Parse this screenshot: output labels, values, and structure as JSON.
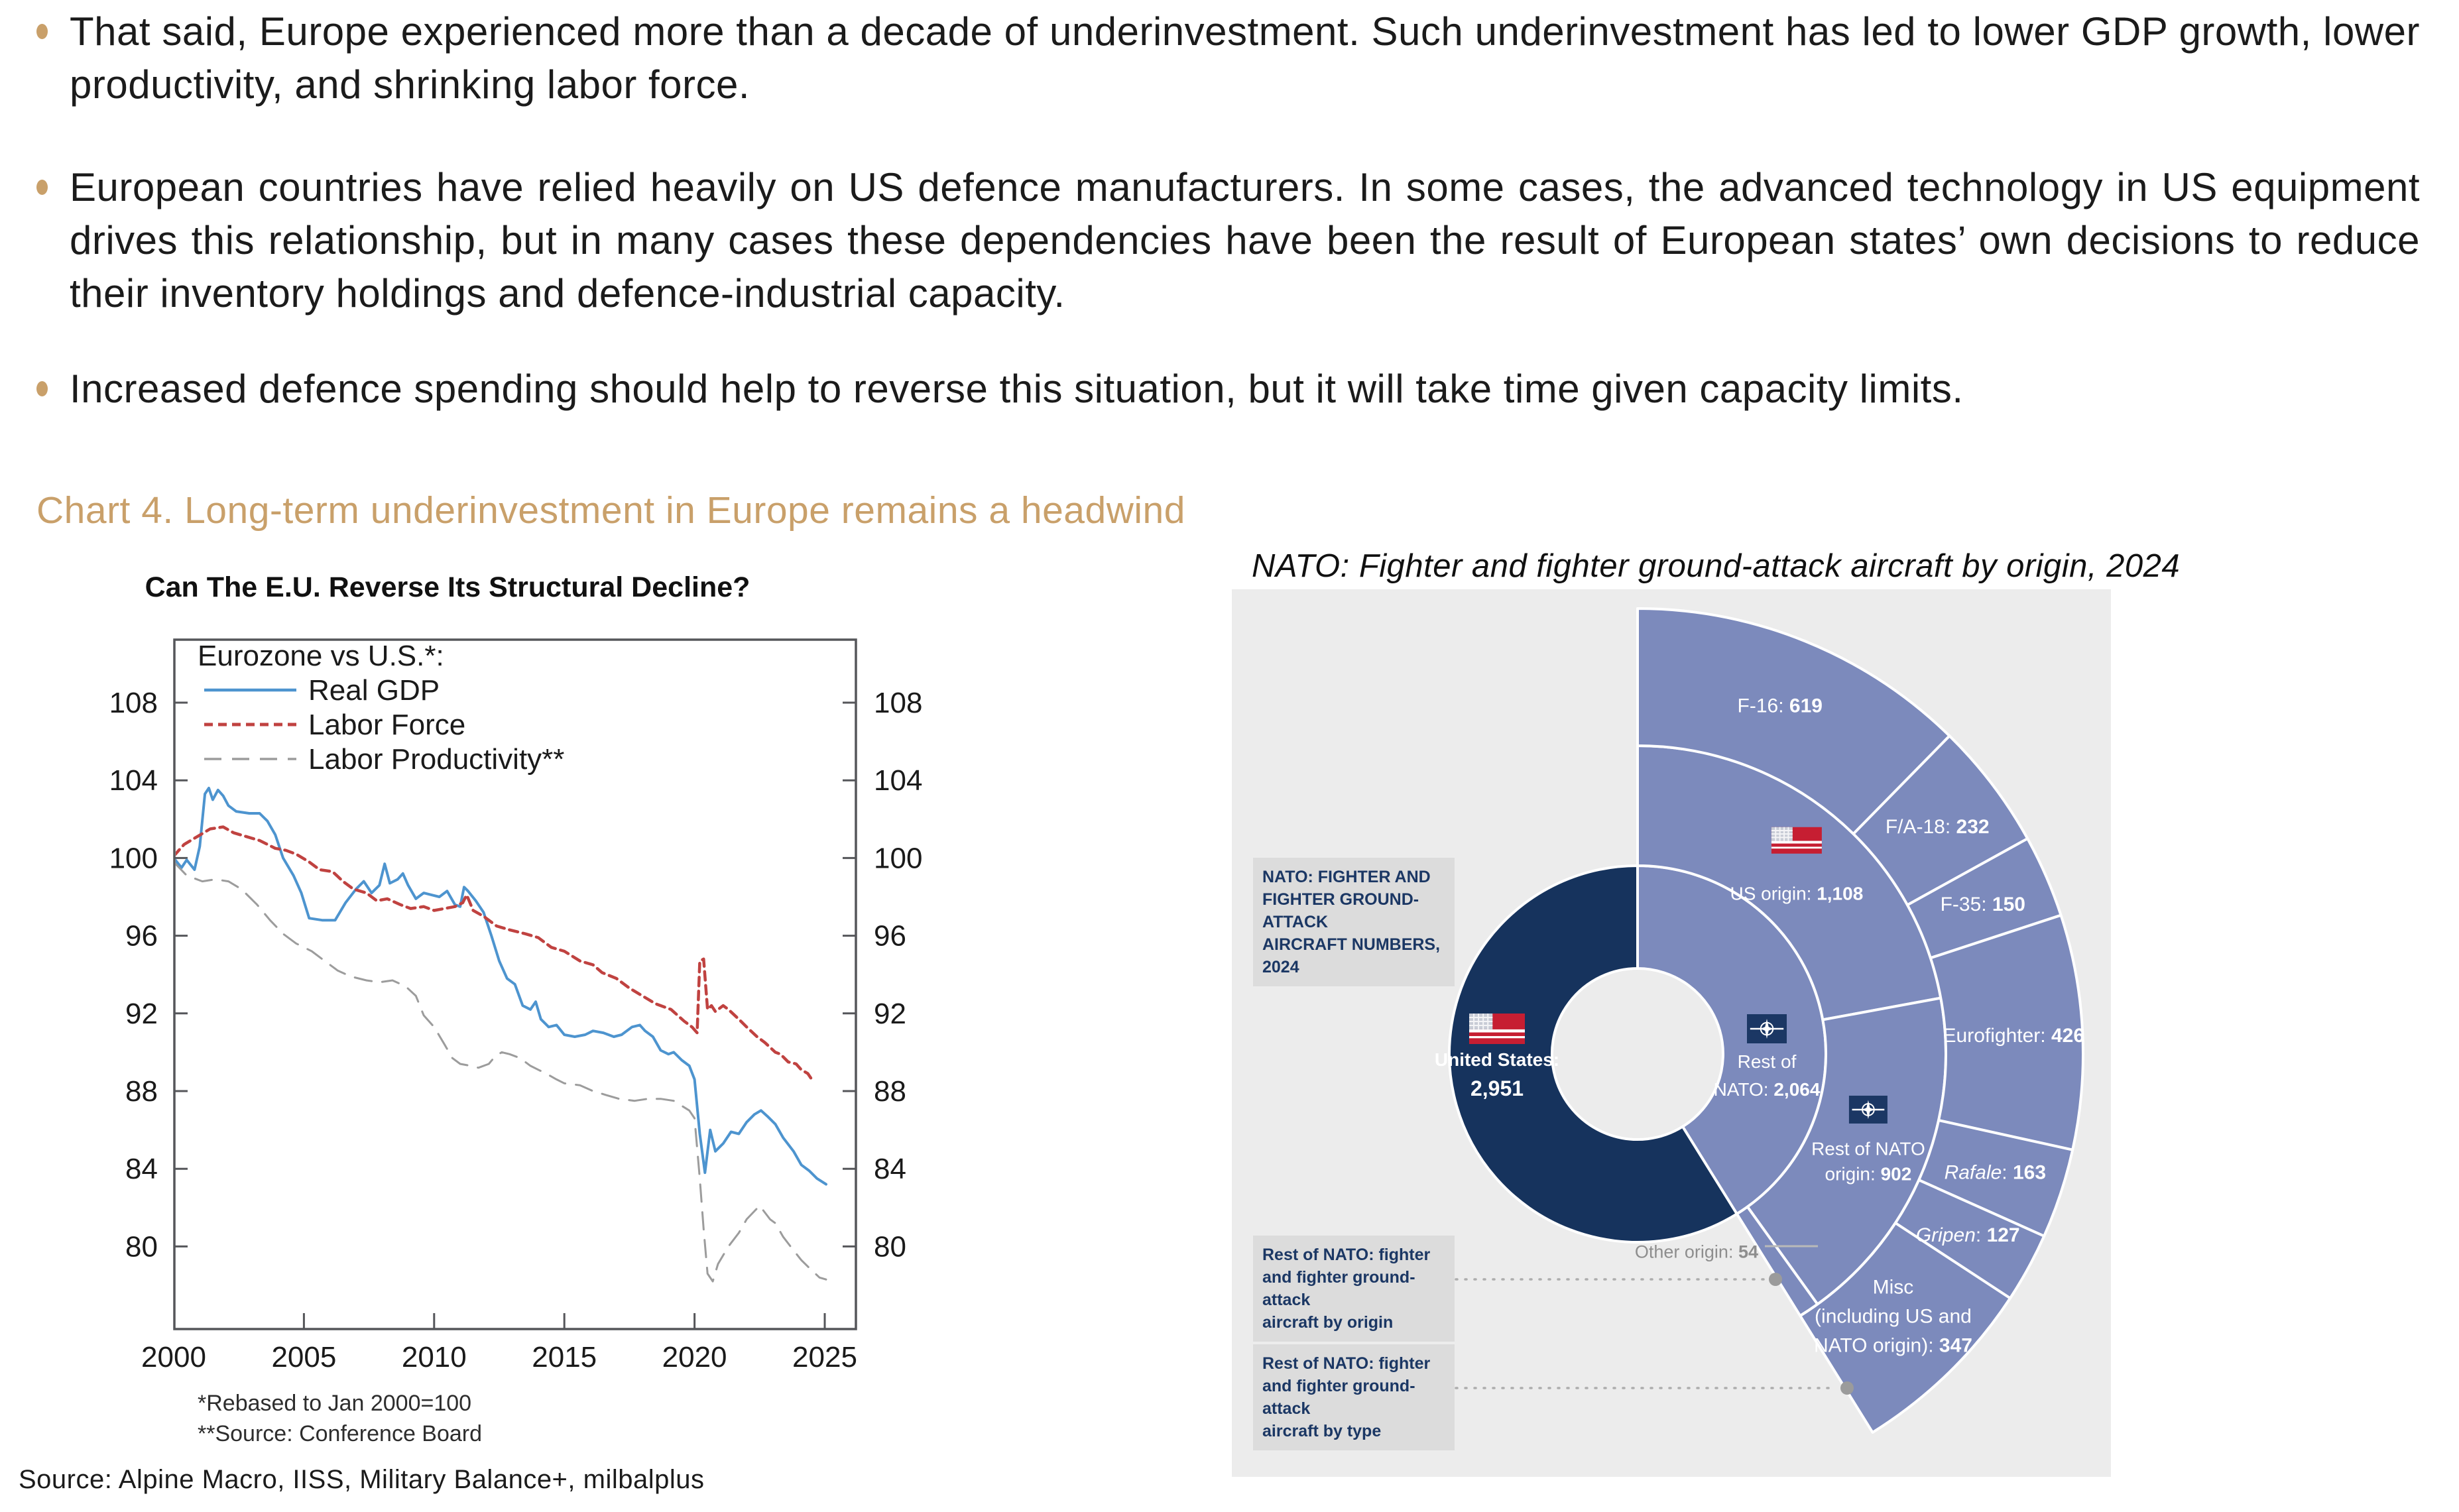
{
  "accent_color": "#C9A06A",
  "bullets": [
    {
      "text": "That said, Europe experienced more than a decade of underinvestment. Such underinvestment has led to lower GDP growth, lower productivity, and shrinking labor force."
    },
    {
      "text": "European countries have relied heavily on US defence manufacturers. In some cases, the advanced technology in US equipment drives this relationship, but in many cases these dependencies have been the result of European states’ own decisions to reduce their inventory holdings and defence-industrial capacity."
    },
    {
      "text": "Increased defence spending should help to reverse this situation, but it will take time given capacity limits."
    }
  ],
  "section_heading": "Chart 4. Long-term underinvestment in Europe remains a headwind",
  "source_note": "Source: Alpine Macro, IISS, Military Balance+, milbalplus",
  "chart_data": [
    {
      "type": "line",
      "title": "Can The E.U. Reverse Its Structural Decline?",
      "legend_title": "Eurozone vs U.S.*:",
      "x_ticks": [
        2000,
        2005,
        2010,
        2015,
        2020,
        2025
      ],
      "y_ticks": [
        108,
        104,
        100,
        96,
        92,
        88,
        84,
        80
      ],
      "xlim": [
        2000,
        2026.2
      ],
      "ylim": [
        75.7,
        111.3
      ],
      "grid": false,
      "legend_position": "top-left-inside",
      "footnotes": [
        "*Rebased to Jan 2000=100",
        "**Source: Conference Board"
      ],
      "series": [
        {
          "name": "Real GDP",
          "color": "#4D94CF",
          "dash": "solid",
          "points": [
            [
              2000.0,
              100.0
            ],
            [
              2000.3,
              99.5
            ],
            [
              2000.5,
              99.9
            ],
            [
              2000.8,
              99.4
            ],
            [
              2001.0,
              100.6
            ],
            [
              2001.2,
              103.3
            ],
            [
              2001.35,
              103.6
            ],
            [
              2001.5,
              103.0
            ],
            [
              2001.7,
              103.5
            ],
            [
              2001.9,
              103.2
            ],
            [
              2002.1,
              102.7
            ],
            [
              2002.4,
              102.4
            ],
            [
              2002.9,
              102.3
            ],
            [
              2003.3,
              102.3
            ],
            [
              2003.6,
              101.9
            ],
            [
              2003.9,
              101.2
            ],
            [
              2004.2,
              100.0
            ],
            [
              2004.6,
              99.1
            ],
            [
              2004.9,
              98.2
            ],
            [
              2005.2,
              96.9
            ],
            [
              2005.7,
              96.8
            ],
            [
              2006.2,
              96.8
            ],
            [
              2006.6,
              97.7
            ],
            [
              2007.0,
              98.4
            ],
            [
              2007.3,
              98.8
            ],
            [
              2007.6,
              98.2
            ],
            [
              2007.9,
              98.6
            ],
            [
              2008.1,
              99.7
            ],
            [
              2008.3,
              98.7
            ],
            [
              2008.6,
              98.9
            ],
            [
              2008.8,
              99.2
            ],
            [
              2009.0,
              98.6
            ],
            [
              2009.3,
              97.9
            ],
            [
              2009.6,
              98.2
            ],
            [
              2009.9,
              98.1
            ],
            [
              2010.2,
              98.0
            ],
            [
              2010.5,
              98.3
            ],
            [
              2010.8,
              97.6
            ],
            [
              2011.0,
              97.5
            ],
            [
              2011.15,
              98.5
            ],
            [
              2011.3,
              98.3
            ],
            [
              2011.6,
              97.8
            ],
            [
              2011.9,
              97.2
            ],
            [
              2012.2,
              96.0
            ],
            [
              2012.5,
              94.7
            ],
            [
              2012.8,
              93.8
            ],
            [
              2013.1,
              93.5
            ],
            [
              2013.4,
              92.4
            ],
            [
              2013.7,
              92.2
            ],
            [
              2013.9,
              92.6
            ],
            [
              2014.1,
              91.7
            ],
            [
              2014.4,
              91.3
            ],
            [
              2014.7,
              91.4
            ],
            [
              2015.0,
              90.9
            ],
            [
              2015.4,
              90.8
            ],
            [
              2015.8,
              90.9
            ],
            [
              2016.1,
              91.1
            ],
            [
              2016.5,
              91.0
            ],
            [
              2016.9,
              90.8
            ],
            [
              2017.2,
              90.9
            ],
            [
              2017.6,
              91.3
            ],
            [
              2017.9,
              91.4
            ],
            [
              2018.1,
              91.1
            ],
            [
              2018.4,
              90.8
            ],
            [
              2018.7,
              90.1
            ],
            [
              2019.0,
              89.9
            ],
            [
              2019.2,
              90.0
            ],
            [
              2019.5,
              89.6
            ],
            [
              2019.8,
              89.3
            ],
            [
              2020.0,
              88.6
            ],
            [
              2020.2,
              85.8
            ],
            [
              2020.4,
              83.8
            ],
            [
              2020.6,
              86.0
            ],
            [
              2020.8,
              84.9
            ],
            [
              2021.1,
              85.3
            ],
            [
              2021.4,
              85.9
            ],
            [
              2021.7,
              85.8
            ],
            [
              2022.0,
              86.4
            ],
            [
              2022.3,
              86.8
            ],
            [
              2022.55,
              87.0
            ],
            [
              2022.8,
              86.7
            ],
            [
              2023.1,
              86.3
            ],
            [
              2023.4,
              85.6
            ],
            [
              2023.8,
              84.9
            ],
            [
              2024.1,
              84.2
            ],
            [
              2024.4,
              83.9
            ],
            [
              2024.7,
              83.5
            ],
            [
              2025.05,
              83.2
            ]
          ]
        },
        {
          "name": "Labor Force",
          "color": "#C04240",
          "dash": "short",
          "points": [
            [
              2000.0,
              100.1
            ],
            [
              2000.4,
              100.7
            ],
            [
              2000.9,
              101.1
            ],
            [
              2001.4,
              101.5
            ],
            [
              2001.9,
              101.6
            ],
            [
              2002.3,
              101.3
            ],
            [
              2002.8,
              101.1
            ],
            [
              2003.3,
              100.9
            ],
            [
              2003.9,
              100.5
            ],
            [
              2004.3,
              100.4
            ],
            [
              2004.7,
              100.2
            ],
            [
              2005.2,
              99.8
            ],
            [
              2005.6,
              99.4
            ],
            [
              2006.1,
              99.3
            ],
            [
              2006.5,
              98.8
            ],
            [
              2006.9,
              98.4
            ],
            [
              2007.4,
              98.2
            ],
            [
              2007.8,
              97.8
            ],
            [
              2008.2,
              97.9
            ],
            [
              2008.7,
              97.6
            ],
            [
              2009.1,
              97.4
            ],
            [
              2009.6,
              97.5
            ],
            [
              2010.0,
              97.3
            ],
            [
              2010.4,
              97.4
            ],
            [
              2010.8,
              97.5
            ],
            [
              2011.1,
              97.7
            ],
            [
              2011.25,
              98.1
            ],
            [
              2011.5,
              97.3
            ],
            [
              2011.9,
              97.0
            ],
            [
              2012.4,
              96.5
            ],
            [
              2012.9,
              96.3
            ],
            [
              2013.5,
              96.1
            ],
            [
              2014.0,
              95.9
            ],
            [
              2014.5,
              95.4
            ],
            [
              2015.0,
              95.2
            ],
            [
              2015.6,
              94.7
            ],
            [
              2016.1,
              94.5
            ],
            [
              2016.45,
              94.1
            ],
            [
              2017.0,
              93.8
            ],
            [
              2017.5,
              93.3
            ],
            [
              2018.0,
              92.9
            ],
            [
              2018.5,
              92.5
            ],
            [
              2019.1,
              92.2
            ],
            [
              2019.6,
              91.6
            ],
            [
              2019.9,
              91.3
            ],
            [
              2020.1,
              91.0
            ],
            [
              2020.2,
              94.7
            ],
            [
              2020.35,
              94.8
            ],
            [
              2020.5,
              92.2
            ],
            [
              2020.65,
              92.4
            ],
            [
              2020.8,
              92.1
            ],
            [
              2021.1,
              92.4
            ],
            [
              2021.3,
              92.2
            ],
            [
              2021.7,
              91.7
            ],
            [
              2022.0,
              91.3
            ],
            [
              2022.4,
              90.8
            ],
            [
              2022.7,
              90.5
            ],
            [
              2023.1,
              90.0
            ],
            [
              2023.3,
              89.9
            ],
            [
              2023.6,
              89.5
            ],
            [
              2023.9,
              89.4
            ],
            [
              2024.1,
              89.1
            ],
            [
              2024.35,
              88.9
            ],
            [
              2024.5,
              88.6
            ]
          ]
        },
        {
          "name": "Labor Productivity**",
          "color": "#9C9C9C",
          "dash": "long",
          "points": [
            [
              2000.0,
              99.8
            ],
            [
              2000.5,
              99.1
            ],
            [
              2001.1,
              98.8
            ],
            [
              2001.6,
              98.9
            ],
            [
              2002.1,
              98.8
            ],
            [
              2002.6,
              98.4
            ],
            [
              2003.2,
              97.6
            ],
            [
              2003.7,
              96.8
            ],
            [
              2004.2,
              96.1
            ],
            [
              2004.7,
              95.6
            ],
            [
              2005.3,
              95.2
            ],
            [
              2005.8,
              94.7
            ],
            [
              2006.3,
              94.2
            ],
            [
              2006.8,
              93.9
            ],
            [
              2007.4,
              93.7
            ],
            [
              2007.9,
              93.6
            ],
            [
              2008.4,
              93.7
            ],
            [
              2008.9,
              93.4
            ],
            [
              2009.3,
              92.9
            ],
            [
              2009.6,
              91.9
            ],
            [
              2010.0,
              91.3
            ],
            [
              2010.4,
              90.4
            ],
            [
              2010.7,
              89.7
            ],
            [
              2011.0,
              89.4
            ],
            [
              2011.4,
              89.3
            ],
            [
              2011.7,
              89.2
            ],
            [
              2012.1,
              89.4
            ],
            [
              2012.35,
              89.8
            ],
            [
              2012.6,
              90.0
            ],
            [
              2012.9,
              89.9
            ],
            [
              2013.3,
              89.7
            ],
            [
              2013.7,
              89.3
            ],
            [
              2014.0,
              89.1
            ],
            [
              2014.3,
              88.9
            ],
            [
              2014.7,
              88.6
            ],
            [
              2015.0,
              88.4
            ],
            [
              2015.6,
              88.3
            ],
            [
              2016.1,
              88.0
            ],
            [
              2016.6,
              87.8
            ],
            [
              2017.1,
              87.6
            ],
            [
              2017.7,
              87.5
            ],
            [
              2018.2,
              87.6
            ],
            [
              2018.7,
              87.6
            ],
            [
              2019.2,
              87.5
            ],
            [
              2019.8,
              87.0
            ],
            [
              2020.0,
              86.6
            ],
            [
              2020.2,
              83.5
            ],
            [
              2020.35,
              80.9
            ],
            [
              2020.5,
              78.6
            ],
            [
              2020.7,
              78.2
            ],
            [
              2020.9,
              79.1
            ],
            [
              2021.3,
              80.0
            ],
            [
              2021.7,
              80.7
            ],
            [
              2022.0,
              81.4
            ],
            [
              2022.5,
              82.1
            ],
            [
              2022.9,
              81.4
            ],
            [
              2023.1,
              81.2
            ],
            [
              2023.4,
              80.5
            ],
            [
              2023.8,
              79.8
            ],
            [
              2024.1,
              79.3
            ],
            [
              2024.4,
              78.9
            ],
            [
              2024.8,
              78.4
            ],
            [
              2025.05,
              78.3
            ]
          ]
        }
      ]
    },
    {
      "type": "sunburst",
      "title": "NATO: Fighter and fighter ground-attack aircraft by origin, 2024",
      "panel_note_lines": [
        "NATO: FIGHTER AND",
        "FIGHTER GROUND-ATTACK",
        "AIRCRAFT NUMBERS, 2024"
      ],
      "totals": [
        {
          "id": "us",
          "name": "United States",
          "value": 2951,
          "display": "2,951",
          "flag": "us"
        },
        {
          "id": "nato",
          "name": "Rest of NATO",
          "value": 2064,
          "display": "2,064",
          "flag": "nato"
        }
      ],
      "origin_ring": [
        {
          "id": "us_origin",
          "name": "US origin",
          "value": 1108,
          "display": "1,108",
          "flag": "us"
        },
        {
          "id": "nato_origin",
          "name": "Rest of NATO origin",
          "value": 902,
          "display": "902",
          "flag": "nato"
        },
        {
          "id": "other_origin",
          "name": "Other origin",
          "value": 54,
          "display": "54"
        }
      ],
      "type_ring": [
        {
          "name": "F-16",
          "value": 619,
          "display": "619"
        },
        {
          "name": "F/A-18",
          "value": 232,
          "display": "232"
        },
        {
          "name": "F-35",
          "value": 150,
          "display": "150"
        },
        {
          "name": "Eurofighter",
          "value": 426,
          "display": "426"
        },
        {
          "name": "Rafale",
          "value": 163,
          "display": "163",
          "italic": true
        },
        {
          "name": "Gripen",
          "value": 127,
          "display": "127",
          "italic": true
        },
        {
          "name": "Misc (including US and NATO origin)",
          "value": 347,
          "display": "347"
        }
      ],
      "callouts": [
        {
          "lines": [
            "Rest of NATO: fighter",
            "and fighter ground-attack",
            "aircraft by origin"
          ]
        },
        {
          "lines": [
            "Rest of NATO: fighter",
            "and fighter ground-attack",
            "aircraft by type"
          ]
        }
      ],
      "colors": {
        "navy": "#16335D",
        "periwinkle": "#7C8ABC",
        "panel": "#ECECEC",
        "box_bg": "#DCDCDC",
        "box_text": "#1B3764",
        "muted": "#8E8E8E"
      }
    }
  ]
}
